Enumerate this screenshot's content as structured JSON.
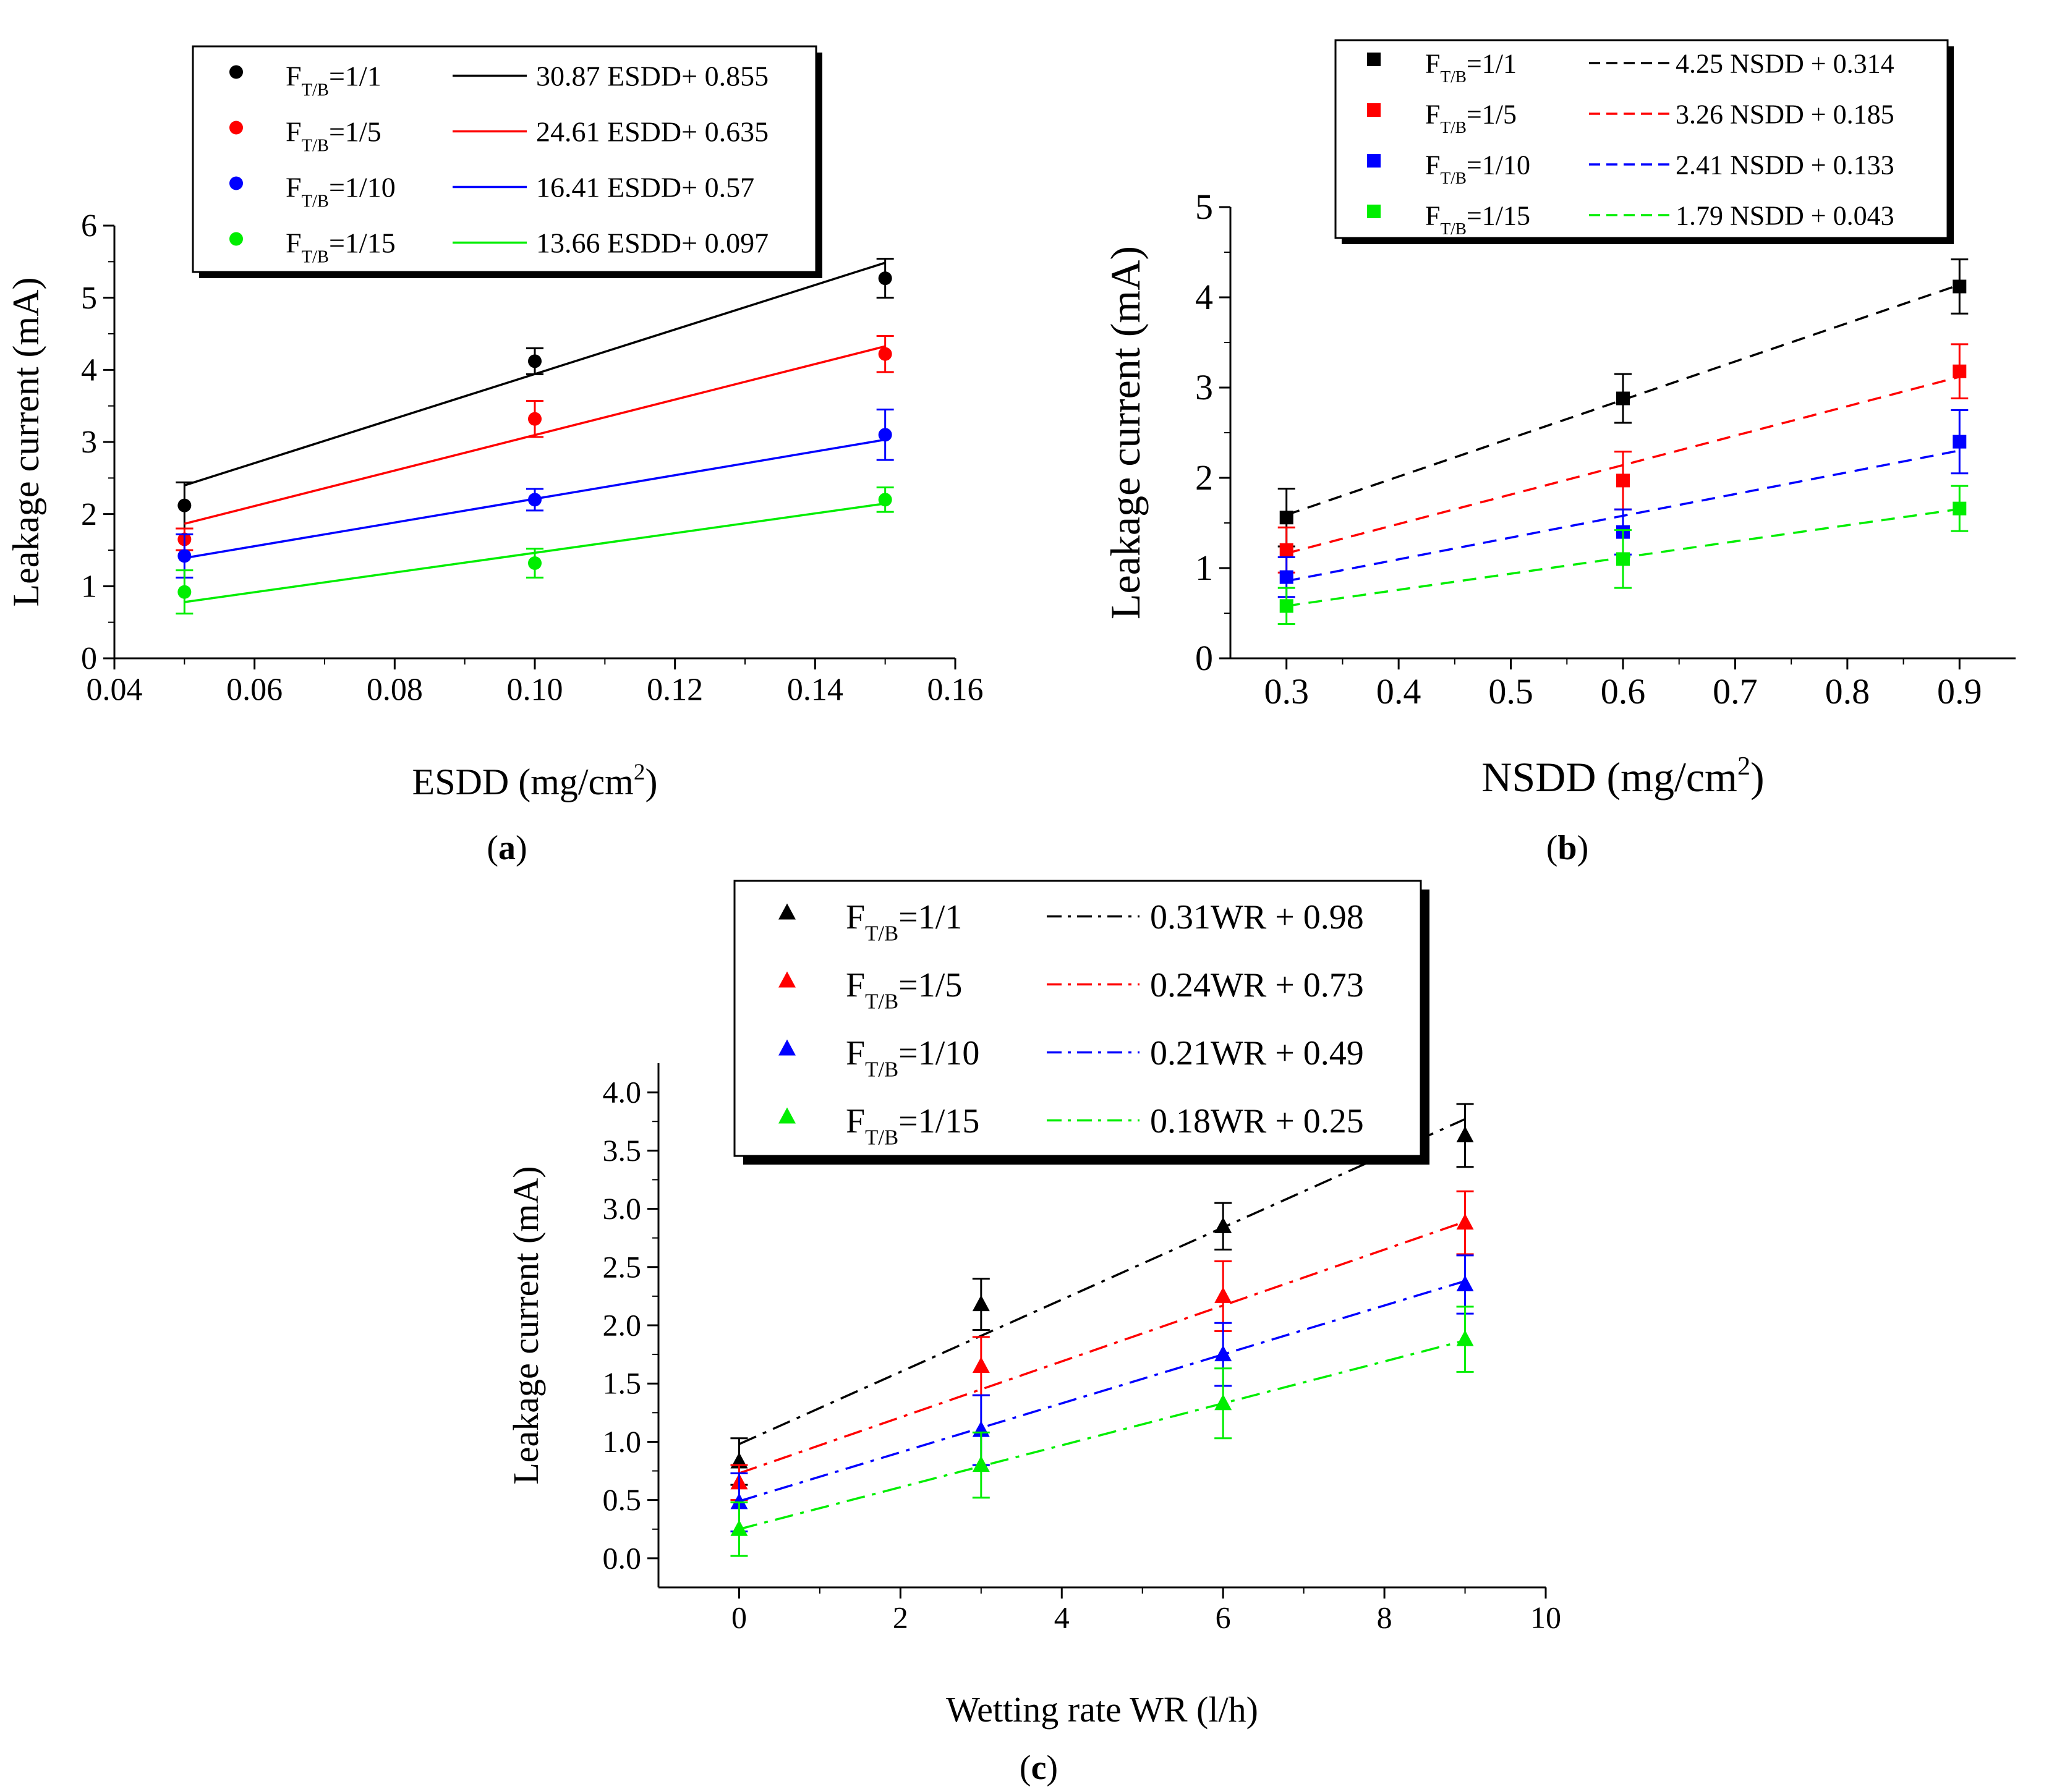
{
  "panels": [
    {
      "label": "a",
      "open": "(",
      "close": ")"
    },
    {
      "label": "b",
      "open": "(",
      "close": ")"
    },
    {
      "label": "c",
      "open": "(",
      "close": ")"
    }
  ],
  "chart_data": [
    {
      "type": "scatter",
      "panel": "a",
      "xlabel": "ESDD (mg/cm",
      "xlabel_sup": "2",
      "xlabel_end": ")",
      "ylabel": "Leakage current (mA)",
      "xlim": [
        0.04,
        0.16
      ],
      "ylim": [
        0,
        6
      ],
      "xticks": [
        0.04,
        0.06,
        0.08,
        0.1,
        0.12,
        0.14,
        0.16
      ],
      "xtick_labels": [
        "0.04",
        "0.06",
        "0.08",
        "0.10",
        "0.12",
        "0.14",
        "0.16"
      ],
      "yticks": [
        0,
        1,
        2,
        3,
        4,
        5,
        6
      ],
      "ytick_labels": [
        "0",
        "1",
        "2",
        "3",
        "4",
        "5",
        "6"
      ],
      "marker": "circle",
      "fit_style": "solid",
      "legend_position": "top-left",
      "grid": false,
      "series": [
        {
          "name_main": "F",
          "name_sub": "T/B",
          "name_rest": "=1/1",
          "color": "#000000",
          "x": [
            0.05,
            0.1,
            0.15
          ],
          "y": [
            2.12,
            4.12,
            5.27
          ],
          "err": [
            0.32,
            0.18,
            0.27
          ],
          "fit_label": "30.87 ESDD+ 0.855",
          "fit_slope": 30.87,
          "fit_intercept": 0.855
        },
        {
          "name_main": "F",
          "name_sub": "T/B",
          "name_rest": "=1/5",
          "color": "#ff0000",
          "x": [
            0.05,
            0.1,
            0.15
          ],
          "y": [
            1.65,
            3.32,
            4.22
          ],
          "err": [
            0.15,
            0.25,
            0.25
          ],
          "fit_label": "24.61 ESDD+ 0.635",
          "fit_slope": 24.61,
          "fit_intercept": 0.635
        },
        {
          "name_main": "F",
          "name_sub": "T/B",
          "name_rest": "=1/10",
          "color": "#0000ff",
          "x": [
            0.05,
            0.1,
            0.15
          ],
          "y": [
            1.42,
            2.2,
            3.1
          ],
          "err": [
            0.3,
            0.15,
            0.35
          ],
          "fit_label": "16.41 ESDD+ 0.57",
          "fit_slope": 16.41,
          "fit_intercept": 0.57
        },
        {
          "name_main": "F",
          "name_sub": "T/B",
          "name_rest": "=1/15",
          "color": "#00ee00",
          "x": [
            0.05,
            0.1,
            0.15
          ],
          "y": [
            0.92,
            1.32,
            2.2
          ],
          "err": [
            0.3,
            0.2,
            0.17
          ],
          "fit_label": "13.66 ESDD+ 0.097",
          "fit_slope": 13.66,
          "fit_intercept": 0.097
        }
      ]
    },
    {
      "type": "scatter",
      "panel": "b",
      "xlabel": "NSDD (mg/cm",
      "xlabel_sup": "2",
      "xlabel_end": ")",
      "ylabel": "Leakage current (mA)",
      "xlim": [
        0.25,
        0.95
      ],
      "ylim": [
        0,
        5
      ],
      "xticks": [
        0.3,
        0.4,
        0.5,
        0.6,
        0.7,
        0.8,
        0.9
      ],
      "xtick_labels": [
        "0.3",
        "0.4",
        "0.5",
        "0.6",
        "0.7",
        "0.8",
        "0.9"
      ],
      "yticks": [
        0,
        1,
        2,
        3,
        4,
        5
      ],
      "ytick_labels": [
        "0",
        "1",
        "2",
        "3",
        "4",
        "5"
      ],
      "marker": "square",
      "fit_style": "dashed",
      "legend_position": "top-left",
      "grid": false,
      "series": [
        {
          "name_main": "F",
          "name_sub": "T/B",
          "name_rest": "=1/1",
          "color": "#000000",
          "x": [
            0.3,
            0.6,
            0.9
          ],
          "y": [
            1.56,
            2.88,
            4.12
          ],
          "err": [
            0.32,
            0.27,
            0.3
          ],
          "fit_label": "4.25 NSDD + 0.314",
          "fit_slope": 4.25,
          "fit_intercept": 0.314
        },
        {
          "name_main": "F",
          "name_sub": "T/B",
          "name_rest": "=1/5",
          "color": "#ff0000",
          "x": [
            0.3,
            0.6,
            0.9
          ],
          "y": [
            1.2,
            1.97,
            3.18
          ],
          "err": [
            0.25,
            0.32,
            0.3
          ],
          "fit_label": "3.26 NSDD + 0.185",
          "fit_slope": 3.26,
          "fit_intercept": 0.185
        },
        {
          "name_main": "F",
          "name_sub": "T/B",
          "name_rest": "=1/10",
          "color": "#0000ff",
          "x": [
            0.3,
            0.6,
            0.9
          ],
          "y": [
            0.9,
            1.4,
            2.4
          ],
          "err": [
            0.22,
            0.25,
            0.35
          ],
          "fit_label": "2.41 NSDD + 0.133",
          "fit_slope": 2.41,
          "fit_intercept": 0.133
        },
        {
          "name_main": "F",
          "name_sub": "T/B",
          "name_rest": "=1/15",
          "color": "#00ee00",
          "x": [
            0.3,
            0.6,
            0.9
          ],
          "y": [
            0.58,
            1.1,
            1.66
          ],
          "err": [
            0.2,
            0.32,
            0.25
          ],
          "fit_label": "1.79 NSDD + 0.043",
          "fit_slope": 1.79,
          "fit_intercept": 0.043
        }
      ]
    },
    {
      "type": "scatter",
      "panel": "c",
      "xlabel": "Wetting rate WR (l/h)",
      "xlabel_sup": "",
      "xlabel_end": "",
      "ylabel": "Leakage current (mA)",
      "xlim": [
        -1,
        10
      ],
      "ylim": [
        -0.25,
        4.25
      ],
      "xticks": [
        0,
        2,
        4,
        6,
        8,
        10
      ],
      "xtick_labels": [
        "0",
        "2",
        "4",
        "6",
        "8",
        "10"
      ],
      "yticks": [
        0,
        0.5,
        1,
        1.5,
        2,
        2.5,
        3,
        3.5,
        4
      ],
      "ytick_labels": [
        "0.0",
        "0.5",
        "1.0",
        "1.5",
        "2.0",
        "2.5",
        "3.0",
        "3.5",
        "4.0"
      ],
      "marker": "triangle",
      "fit_style": "dashdot",
      "legend_position": "top-right",
      "grid": false,
      "series": [
        {
          "name_main": "F",
          "name_sub": "T/B",
          "name_rest": "=1/1",
          "color": "#000000",
          "x": [
            0,
            3,
            6,
            9
          ],
          "y": [
            0.83,
            2.18,
            2.85,
            3.63
          ],
          "err": [
            0.2,
            0.22,
            0.2,
            0.27
          ],
          "fit_label": "0.31WR + 0.98",
          "fit_slope": 0.31,
          "fit_intercept": 0.98
        },
        {
          "name_main": "F",
          "name_sub": "T/B",
          "name_rest": "=1/5",
          "color": "#ff0000",
          "x": [
            0,
            3,
            6,
            9
          ],
          "y": [
            0.65,
            1.65,
            2.25,
            2.88
          ],
          "err": [
            0.15,
            0.25,
            0.3,
            0.27
          ],
          "fit_label": "0.24WR + 0.73",
          "fit_slope": 0.24,
          "fit_intercept": 0.73
        },
        {
          "name_main": "F",
          "name_sub": "T/B",
          "name_rest": "=1/10",
          "color": "#0000ff",
          "x": [
            0,
            3,
            6,
            9
          ],
          "y": [
            0.48,
            1.1,
            1.75,
            2.35
          ],
          "err": [
            0.25,
            0.3,
            0.27,
            0.25
          ],
          "fit_label": "0.21WR + 0.49",
          "fit_slope": 0.21,
          "fit_intercept": 0.49
        },
        {
          "name_main": "F",
          "name_sub": "T/B",
          "name_rest": "=1/15",
          "color": "#00ee00",
          "x": [
            0,
            3,
            6,
            9
          ],
          "y": [
            0.25,
            0.8,
            1.33,
            1.88
          ],
          "err": [
            0.23,
            0.28,
            0.3,
            0.28
          ],
          "fit_label": "0.18WR + 0.25",
          "fit_slope": 0.18,
          "fit_intercept": 0.25
        }
      ]
    }
  ]
}
